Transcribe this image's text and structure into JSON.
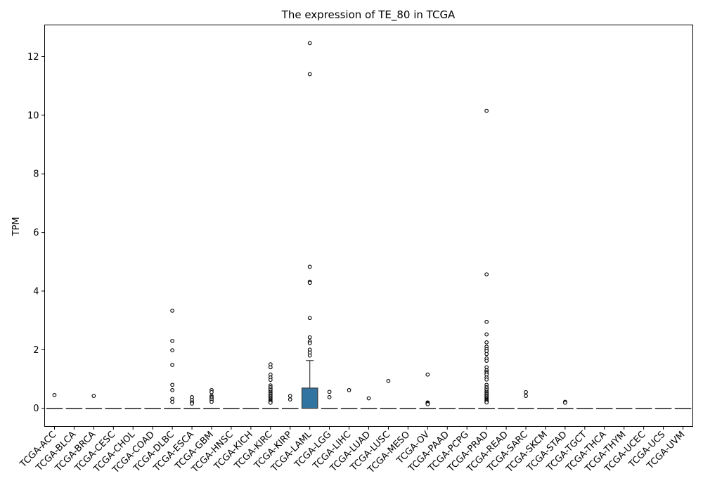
{
  "chart_data": {
    "type": "box",
    "title": "The expression of TE_80 in TCGA",
    "xlabel": "",
    "ylabel": "TPM",
    "ylim": [
      -0.62,
      13.08
    ],
    "yticks": [
      0,
      2,
      4,
      6,
      8,
      10,
      12
    ],
    "grid": false,
    "legend": "none",
    "box_color": "#3274a1",
    "line_color": "#3d3d3d",
    "categories": [
      "TCGA-ACC",
      "TCGA-BLCA",
      "TCGA-BRCA",
      "TCGA-CESC",
      "TCGA-CHOL",
      "TCGA-COAD",
      "TCGA-DLBC",
      "TCGA-ESCA",
      "TCGA-GBM",
      "TCGA-HNSC",
      "TCGA-KICH",
      "TCGA-KIRC",
      "TCGA-KIRP",
      "TCGA-LAML",
      "TCGA-LGG",
      "TCGA-LIHC",
      "TCGA-LUAD",
      "TCGA-LUSC",
      "TCGA-MESO",
      "TCGA-OV",
      "TCGA-PAAD",
      "TCGA-PCPG",
      "TCGA-PRAD",
      "TCGA-READ",
      "TCGA-SARC",
      "TCGA-SKCM",
      "TCGA-STAD",
      "TCGA-TGCT",
      "TCGA-THCA",
      "TCGA-THYM",
      "TCGA-UCEC",
      "TCGA-UCS",
      "TCGA-UVM"
    ],
    "boxes": [
      {
        "q1": 0,
        "median": 0,
        "q3": 0,
        "whisker_low": 0,
        "whisker_high": 0,
        "outliers": [
          0.45
        ]
      },
      {
        "q1": 0,
        "median": 0,
        "q3": 0,
        "whisker_low": 0,
        "whisker_high": 0,
        "outliers": []
      },
      {
        "q1": 0,
        "median": 0,
        "q3": 0,
        "whisker_low": 0,
        "whisker_high": 0,
        "outliers": [
          0.42
        ]
      },
      {
        "q1": 0,
        "median": 0,
        "q3": 0,
        "whisker_low": 0,
        "whisker_high": 0,
        "outliers": []
      },
      {
        "q1": 0,
        "median": 0,
        "q3": 0,
        "whisker_low": 0,
        "whisker_high": 0,
        "outliers": []
      },
      {
        "q1": 0,
        "median": 0,
        "q3": 0,
        "whisker_low": 0,
        "whisker_high": 0,
        "outliers": []
      },
      {
        "q1": 0,
        "median": 0,
        "q3": 0,
        "whisker_low": 0,
        "whisker_high": 0,
        "outliers": [
          3.33,
          2.3,
          1.98,
          1.48,
          0.8,
          0.62,
          0.32,
          0.22
        ]
      },
      {
        "q1": 0,
        "median": 0,
        "q3": 0,
        "whisker_low": 0,
        "whisker_high": 0,
        "outliers": [
          0.38,
          0.28,
          0.2,
          0.16
        ]
      },
      {
        "q1": 0,
        "median": 0,
        "q3": 0,
        "whisker_low": 0,
        "whisker_high": 0,
        "outliers": [
          0.62,
          0.55,
          0.42,
          0.38,
          0.33,
          0.28,
          0.22
        ]
      },
      {
        "q1": 0,
        "median": 0,
        "q3": 0,
        "whisker_low": 0,
        "whisker_high": 0,
        "outliers": []
      },
      {
        "q1": 0,
        "median": 0,
        "q3": 0,
        "whisker_low": 0,
        "whisker_high": 0,
        "outliers": []
      },
      {
        "q1": 0,
        "median": 0,
        "q3": 0,
        "whisker_low": 0,
        "whisker_high": 0,
        "outliers": [
          1.5,
          1.4,
          1.15,
          1.05,
          0.97,
          0.78,
          0.72,
          0.67,
          0.62,
          0.56,
          0.52,
          0.48,
          0.44,
          0.4,
          0.36,
          0.32,
          0.28,
          0.25,
          0.22,
          0.19
        ]
      },
      {
        "q1": 0,
        "median": 0,
        "q3": 0,
        "whisker_low": 0,
        "whisker_high": 0,
        "outliers": [
          0.42,
          0.3
        ]
      },
      {
        "q1": 0,
        "median": 0,
        "q3": 0.69,
        "whisker_low": 0,
        "whisker_high": 1.63,
        "outliers": [
          12.46,
          11.4,
          4.83,
          4.32,
          4.28,
          3.08,
          2.42,
          2.28,
          2.22,
          2.0,
          1.9,
          1.8
        ]
      },
      {
        "q1": 0,
        "median": 0,
        "q3": 0,
        "whisker_low": 0,
        "whisker_high": 0,
        "outliers": [
          0.56,
          0.38
        ]
      },
      {
        "q1": 0,
        "median": 0,
        "q3": 0,
        "whisker_low": 0,
        "whisker_high": 0,
        "outliers": [
          0.62
        ]
      },
      {
        "q1": 0,
        "median": 0,
        "q3": 0,
        "whisker_low": 0,
        "whisker_high": 0,
        "outliers": [
          0.34
        ]
      },
      {
        "q1": 0,
        "median": 0,
        "q3": 0,
        "whisker_low": 0,
        "whisker_high": 0,
        "outliers": [
          0.93
        ]
      },
      {
        "q1": 0,
        "median": 0,
        "q3": 0,
        "whisker_low": 0,
        "whisker_high": 0,
        "outliers": []
      },
      {
        "q1": 0,
        "median": 0,
        "q3": 0,
        "whisker_low": 0,
        "whisker_high": 0,
        "outliers": [
          1.15,
          0.2,
          0.17,
          0.14
        ]
      },
      {
        "q1": 0,
        "median": 0,
        "q3": 0,
        "whisker_low": 0,
        "whisker_high": 0,
        "outliers": []
      },
      {
        "q1": 0,
        "median": 0,
        "q3": 0,
        "whisker_low": 0,
        "whisker_high": 0,
        "outliers": []
      },
      {
        "q1": 0,
        "median": 0,
        "q3": 0,
        "whisker_low": 0,
        "whisker_high": 0,
        "outliers": [
          10.15,
          4.57,
          2.95,
          2.52,
          2.25,
          2.1,
          2.02,
          1.95,
          1.85,
          1.7,
          1.62,
          1.4,
          1.3,
          1.25,
          1.2,
          1.15,
          1.05,
          0.98,
          0.8,
          0.72,
          0.68,
          0.62,
          0.56,
          0.52,
          0.48,
          0.44,
          0.4,
          0.36,
          0.32,
          0.29,
          0.26,
          0.23,
          0.2
        ]
      },
      {
        "q1": 0,
        "median": 0,
        "q3": 0,
        "whisker_low": 0,
        "whisker_high": 0,
        "outliers": []
      },
      {
        "q1": 0,
        "median": 0,
        "q3": 0,
        "whisker_low": 0,
        "whisker_high": 0,
        "outliers": [
          0.55,
          0.42
        ]
      },
      {
        "q1": 0,
        "median": 0,
        "q3": 0,
        "whisker_low": 0,
        "whisker_high": 0,
        "outliers": []
      },
      {
        "q1": 0,
        "median": 0,
        "q3": 0,
        "whisker_low": 0,
        "whisker_high": 0,
        "outliers": [
          0.22,
          0.19
        ]
      },
      {
        "q1": 0,
        "median": 0,
        "q3": 0,
        "whisker_low": 0,
        "whisker_high": 0,
        "outliers": []
      },
      {
        "q1": 0,
        "median": 0,
        "q3": 0,
        "whisker_low": 0,
        "whisker_high": 0,
        "outliers": []
      },
      {
        "q1": 0,
        "median": 0,
        "q3": 0,
        "whisker_low": 0,
        "whisker_high": 0,
        "outliers": []
      },
      {
        "q1": 0,
        "median": 0,
        "q3": 0,
        "whisker_low": 0,
        "whisker_high": 0,
        "outliers": []
      },
      {
        "q1": 0,
        "median": 0,
        "q3": 0,
        "whisker_low": 0,
        "whisker_high": 0,
        "outliers": []
      },
      {
        "q1": 0,
        "median": 0,
        "q3": 0,
        "whisker_low": 0,
        "whisker_high": 0,
        "outliers": []
      }
    ]
  }
}
